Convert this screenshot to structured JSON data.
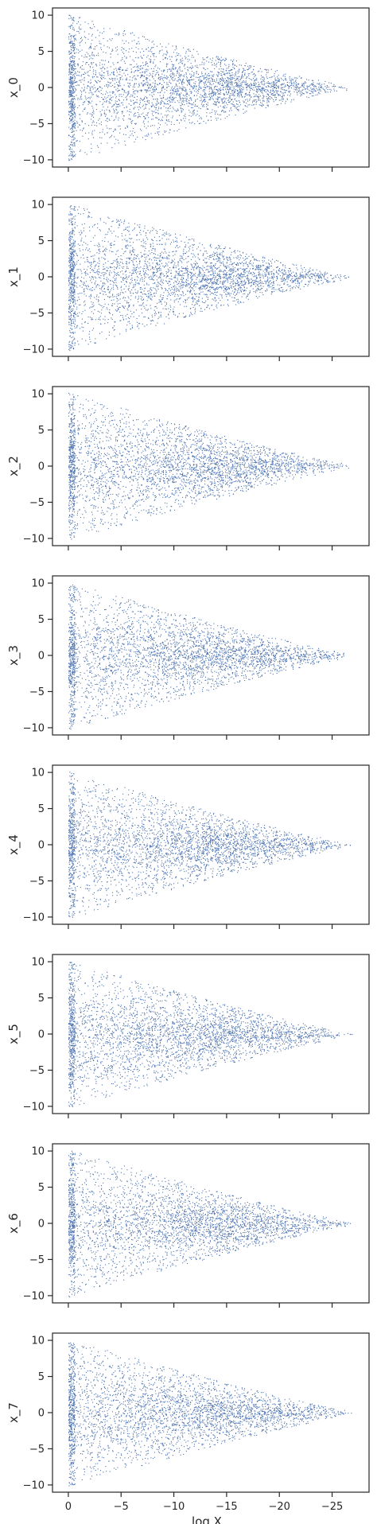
{
  "chart_data": {
    "type": "scatter",
    "layout": "8 vertically stacked panels sharing one x axis",
    "marker_color": "#4c72b0",
    "x_axis": {
      "label": "log X",
      "lim": [
        1.5,
        -28.5
      ],
      "direction": "reversed",
      "ticks": [
        0,
        -5,
        -10,
        -15,
        -20,
        -25
      ],
      "tick_labels": [
        "0",
        "−5",
        "−10",
        "−15",
        "−20",
        "−25"
      ]
    },
    "y_axis": {
      "lim": [
        -11,
        11
      ],
      "ticks": [
        10,
        5,
        0,
        -5,
        -10
      ],
      "tick_labels": [
        "10",
        "5",
        "0",
        "−5",
        "−10"
      ]
    },
    "grid": false,
    "legend": "none",
    "panels": [
      {
        "ylabel": "x_0"
      },
      {
        "ylabel": "x_1"
      },
      {
        "ylabel": "x_2"
      },
      {
        "ylabel": "x_3"
      },
      {
        "ylabel": "x_4"
      },
      {
        "ylabel": "x_5"
      },
      {
        "ylabel": "x_6"
      },
      {
        "ylabel": "x_7"
      }
    ],
    "point_cloud": {
      "description_values": "dense cloud per panel; x from about 0 to -27, y uniform in [-10, 10] at x = 0, narrowing roughly linearly toward y = 0 near x = -25",
      "x_range": [
        0,
        -27
      ],
      "y_halfwidth_at_x0": 10,
      "y_halfwidth_at_xmin": 0.2,
      "points_per_panel": 3500
    }
  }
}
